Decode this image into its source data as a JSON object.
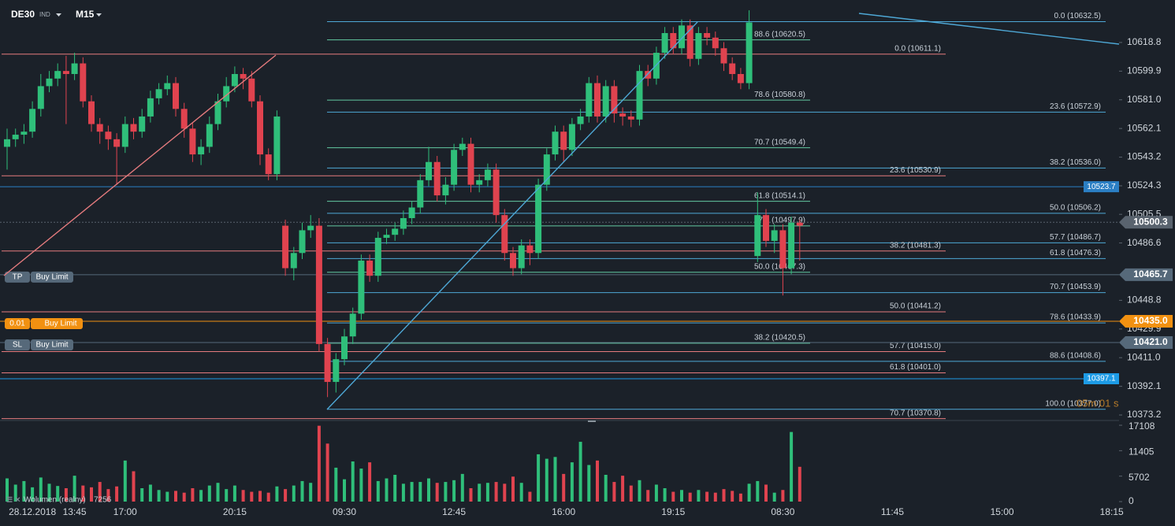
{
  "header": {
    "symbol": "DE30",
    "market": "IND",
    "timeframe": "M15"
  },
  "chart_data": {
    "type": "candlestick",
    "up_color": "#2fbf7a",
    "down_color": "#e0434f",
    "categories": [
      null,
      null,
      null,
      "28.12.2018",
      null,
      null,
      null,
      null,
      "13:45",
      null,
      null,
      null,
      null,
      null,
      "17:00",
      null,
      null,
      null,
      null,
      null,
      null,
      null,
      null,
      null,
      null,
      null,
      null,
      "20:15",
      null,
      null,
      null,
      null,
      null,
      null,
      null,
      null,
      null,
      null,
      null,
      null,
      "09:30",
      null,
      null,
      null,
      null,
      null,
      null,
      null,
      null,
      null,
      null,
      null,
      null,
      "12:45",
      null,
      null,
      null,
      null,
      null,
      null,
      null,
      null,
      null,
      null,
      null,
      null,
      "16:00",
      null,
      null,
      null,
      null,
      null,
      null,
      null,
      null,
      null,
      null,
      null,
      null,
      "19:15",
      null,
      null,
      null,
      null,
      null,
      null,
      null,
      null,
      null,
      null,
      null,
      null,
      "08:30",
      null,
      null,
      null,
      null,
      null,
      null,
      null,
      null,
      null,
      null,
      null,
      null,
      "11:45",
      null,
      null,
      null,
      null,
      null,
      null,
      null,
      null,
      null,
      null,
      null,
      null,
      "15:00",
      null,
      null,
      null,
      null,
      null,
      null,
      null,
      null,
      null,
      null,
      null,
      null,
      "18:15"
    ],
    "open": [
      10550,
      10555,
      10558,
      10560,
      10575,
      10590,
      10595,
      10600,
      10598,
      10605,
      10580,
      10565,
      10560,
      10555,
      10550,
      10565,
      10560,
      10570,
      10582,
      10588,
      10592,
      10575,
      10562,
      10545,
      10550,
      10565,
      10580,
      10590,
      10598,
      10595,
      10580,
      10545,
      10532,
      10498,
      10470,
      10480,
      10495,
      10498,
      10420,
      10395,
      10410,
      10425,
      10440,
      10475,
      10465,
      10490,
      10492,
      10496,
      10503,
      10510,
      10528,
      10540,
      10518,
      10525,
      10548,
      10552,
      10525,
      10528,
      10535,
      10505,
      10480,
      10470,
      10485,
      10480,
      10525,
      10545,
      10560,
      10548,
      10565,
      10570,
      10592,
      10570,
      10590,
      10572,
      10570,
      10568,
      10600,
      10595,
      10612,
      10625,
      10615,
      10630,
      10608,
      10625,
      10622,
      10615,
      10605,
      10598,
      10592,
      10478,
      10505,
      10488,
      10495,
      10470,
      10500,
      null,
      null,
      null,
      null,
      null,
      null,
      null,
      null,
      null,
      null,
      null,
      null,
      null,
      null,
      null,
      null,
      null,
      null,
      null,
      null,
      null,
      null,
      null,
      null,
      null,
      null,
      null,
      null,
      null,
      null,
      null,
      null,
      null,
      null,
      null,
      null,
      null
    ],
    "high": [
      10562,
      10562,
      10565,
      10580,
      10598,
      10600,
      10605,
      10610,
      10612,
      10609,
      10584,
      10569,
      10564,
      10559,
      10570,
      10569,
      10575,
      10587,
      10592,
      10597,
      10596,
      10579,
      10566,
      10555,
      10570,
      10585,
      10596,
      10603,
      10602,
      10600,
      10584,
      10549,
      10574,
      10502,
      10484,
      10500,
      10505,
      10503,
      10424,
      10414,
      10430,
      10444,
      10479,
      10479,
      10494,
      10496,
      10500,
      10508,
      10514,
      10532,
      10550,
      10544,
      10530,
      10552,
      10556,
      10556,
      10532,
      10539,
      10539,
      10509,
      10484,
      10489,
      10489,
      10529,
      10549,
      10564,
      10564,
      10569,
      10575,
      10596,
      10597,
      10594,
      10594,
      10576,
      10574,
      10604,
      10604,
      10616,
      10629,
      10629,
      10634,
      10634,
      10629,
      10629,
      10626,
      10619,
      10609,
      10602,
      10640,
      10520,
      10509,
      10499,
      10499,
      10504,
      10502,
      null,
      null,
      null,
      null,
      null,
      null,
      null,
      null,
      null,
      null,
      null,
      null,
      null,
      null,
      null,
      null,
      null,
      null,
      null,
      null,
      null,
      null,
      null,
      null,
      null,
      null,
      null,
      null,
      null,
      null,
      null,
      null,
      null,
      null,
      null,
      null,
      null
    ],
    "low": [
      10535,
      10550,
      10552,
      10556,
      10570,
      10586,
      10590,
      10565,
      10594,
      10576,
      10560,
      10552,
      10548,
      10525,
      10546,
      10555,
      10556,
      10566,
      10578,
      10584,
      10570,
      10556,
      10540,
      10538,
      10546,
      10561,
      10576,
      10586,
      10588,
      10576,
      10538,
      10528,
      10528,
      10465,
      10462,
      10476,
      10490,
      10415,
      10385,
      10388,
      10406,
      10420,
      10436,
      10461,
      10461,
      10486,
      10488,
      10492,
      10499,
      10506,
      10524,
      10514,
      10512,
      10521,
      10544,
      10520,
      10520,
      10524,
      10500,
      10475,
      10465,
      10466,
      10472,
      10476,
      10521,
      10541,
      10540,
      10544,
      10561,
      10566,
      10566,
      10566,
      10566,
      10564,
      10563,
      10564,
      10590,
      10591,
      10608,
      10611,
      10611,
      10603,
      10604,
      10617,
      10610,
      10600,
      10594,
      10588,
      10588,
      10474,
      10484,
      10480,
      10452,
      10466,
      10475,
      null,
      null,
      null,
      null,
      null,
      null,
      null,
      null,
      null,
      null,
      null,
      null,
      null,
      null,
      null,
      null,
      null,
      null,
      null,
      null,
      null,
      null,
      null,
      null,
      null,
      null,
      null,
      null,
      null,
      null,
      null,
      null,
      null,
      null,
      null,
      null,
      null
    ],
    "close": [
      10555,
      10558,
      10560,
      10575,
      10590,
      10595,
      10600,
      10598,
      10605,
      10580,
      10565,
      10560,
      10555,
      10550,
      10565,
      10560,
      10570,
      10582,
      10588,
      10592,
      10575,
      10562,
      10545,
      10550,
      10565,
      10580,
      10590,
      10598,
      10595,
      10580,
      10545,
      10532,
      10570,
      10470,
      10480,
      10495,
      10498,
      10420,
      10395,
      10410,
      10425,
      10440,
      10475,
      10465,
      10490,
      10492,
      10496,
      10503,
      10510,
      10528,
      10540,
      10518,
      10525,
      10548,
      10552,
      10525,
      10528,
      10535,
      10505,
      10480,
      10470,
      10485,
      10480,
      10525,
      10545,
      10560,
      10548,
      10565,
      10570,
      10592,
      10570,
      10590,
      10572,
      10570,
      10568,
      10600,
      10595,
      10612,
      10625,
      10615,
      10630,
      10608,
      10625,
      10622,
      10615,
      10605,
      10598,
      10592,
      10632,
      10505,
      10488,
      10495,
      10470,
      10500,
      10498,
      null,
      null,
      null,
      null,
      null,
      null,
      null,
      null,
      null,
      null,
      null,
      null,
      null,
      null,
      null,
      null,
      null,
      null,
      null,
      null,
      null,
      null,
      null,
      null,
      null,
      null,
      null,
      null,
      null,
      null,
      null,
      null,
      null,
      null,
      null,
      null,
      null
    ],
    "ylim": [
      10370.1,
      10646.8
    ],
    "yticks": [
      10618.8,
      10599.9,
      {
        "value": 10581,
        "label": "10581.0"
      },
      10562.1,
      10543.2,
      10524.3,
      10505.5,
      10486.6,
      10448.8,
      10429.9,
      {
        "value": 10411,
        "label": "10411.0"
      },
      10392.1,
      10373.2
    ],
    "volume": {
      "name": "Wolumen (realny)",
      "last": 7256,
      "ylim": [
        0,
        18000
      ],
      "yticks": [
        17108,
        11405,
        5702,
        0
      ],
      "values": [
        5200,
        3800,
        4600,
        3200,
        5400,
        4000,
        3500,
        3000,
        5800,
        3600,
        3200,
        4400,
        2800,
        3400,
        9200,
        6800,
        3000,
        3800,
        2600,
        2200,
        2400,
        2000,
        3000,
        2600,
        3600,
        4200,
        2800,
        3600,
        2600,
        2200,
        2400,
        2000,
        3400,
        2800,
        3600,
        4600,
        4200,
        17000,
        13000,
        7600,
        5000,
        9000,
        7400,
        8800,
        4600,
        5200,
        6000,
        4000,
        4400,
        4400,
        5200,
        4200,
        4400,
        4800,
        6200,
        3000,
        4000,
        4200,
        4400,
        4000,
        5600,
        4200,
        2200,
        10600,
        9600,
        10000,
        6200,
        8800,
        13400,
        8200,
        9200,
        6000,
        4400,
        5800,
        3600,
        4800,
        2600,
        3800,
        3000,
        2200,
        2600,
        2000,
        2600,
        2200,
        2000,
        2800,
        2400,
        1800,
        4000,
        4600,
        3800,
        2000,
        2600,
        15600,
        7800,
        null,
        null,
        null,
        null,
        null,
        null,
        null,
        null,
        null,
        null,
        null,
        null,
        null,
        null,
        null,
        null,
        null,
        null,
        null,
        null,
        null,
        null,
        null,
        null,
        null,
        null,
        null,
        null,
        null,
        null,
        null,
        null,
        null,
        null,
        null,
        null,
        null
      ]
    },
    "fib_sets": [
      {
        "color": "#63c9a2",
        "levels": [
          {
            "value": 10620.5,
            "label": "88.6 (10620.5)"
          },
          {
            "value": 10580.8,
            "label": "78.6 (10580.8)"
          },
          {
            "value": 10549.4,
            "label": "70.7 (10549.4)"
          },
          {
            "value": 10514.1,
            "label": "61.8 (10514.1)"
          },
          {
            "value": 10497.9,
            "label": "57.7 (10497.9)"
          },
          {
            "value": 10467.3,
            "label": "50.0 (10467.3)"
          },
          {
            "value": 10420.5,
            "label": "38.2 (10420.5)"
          }
        ]
      },
      {
        "color": "#4ea8d6",
        "levels": [
          {
            "value": 10632.5,
            "label": "0.0 (10632.5)"
          },
          {
            "value": 10572.9,
            "label": "23.6 (10572.9)"
          },
          {
            "value": 10536,
            "label": "38.2 (10536.0)"
          },
          {
            "value": 10506.2,
            "label": "50.0 (10506.2)"
          },
          {
            "value": 10486.7,
            "label": "57.7 (10486.7)"
          },
          {
            "value": 10476.3,
            "label": "61.8 (10476.3)"
          },
          {
            "value": 10453.9,
            "label": "70.7 (10453.9)"
          },
          {
            "value": 10433.9,
            "label": "78.6 (10433.9)"
          },
          {
            "value": 10408.6,
            "label": "88.6 (10408.6)"
          },
          {
            "value": 10377,
            "label": "100.0 (10377.0)"
          }
        ]
      },
      {
        "color": "#e57b7e",
        "levels": [
          {
            "value": 10611.1,
            "label": "0.0 (10611.1)"
          },
          {
            "value": 10530.9,
            "label": "23.6 (10530.9)"
          },
          {
            "value": 10481.3,
            "label": "38.2 (10481.3)"
          },
          {
            "value": 10441.2,
            "label": "50.0 (10441.2)"
          },
          {
            "value": 10415,
            "label": "57.7 (10415.0)"
          },
          {
            "value": 10401,
            "label": "61.8 (10401.0)"
          },
          {
            "value": 10370.8,
            "label": "70.7 (10370.8)"
          }
        ]
      }
    ],
    "price_markers": [
      {
        "value": 10523.7,
        "color": "#2b7fc4"
      },
      {
        "value": 10500.3,
        "color": "#59636e"
      },
      {
        "value": 10465.7,
        "color": "#56697a"
      },
      {
        "value": 10435,
        "label": "10435.0",
        "color": "#f29111"
      },
      {
        "value": 10421,
        "label": "10421.0",
        "color": "#56697a"
      },
      {
        "value": 10397.1,
        "color": "#1d9be6"
      }
    ],
    "orders": [
      {
        "tag": "TP",
        "type": "Buy Limit",
        "value": 10465.7,
        "color": "#56697a"
      },
      {
        "tag": "0.01",
        "type": "Buy Limit",
        "value": 10435,
        "color": "#f29111"
      },
      {
        "tag": "SL",
        "type": "Buy Limit",
        "value": 10421,
        "color": "#56697a"
      }
    ],
    "timer": "05m 01 s"
  }
}
